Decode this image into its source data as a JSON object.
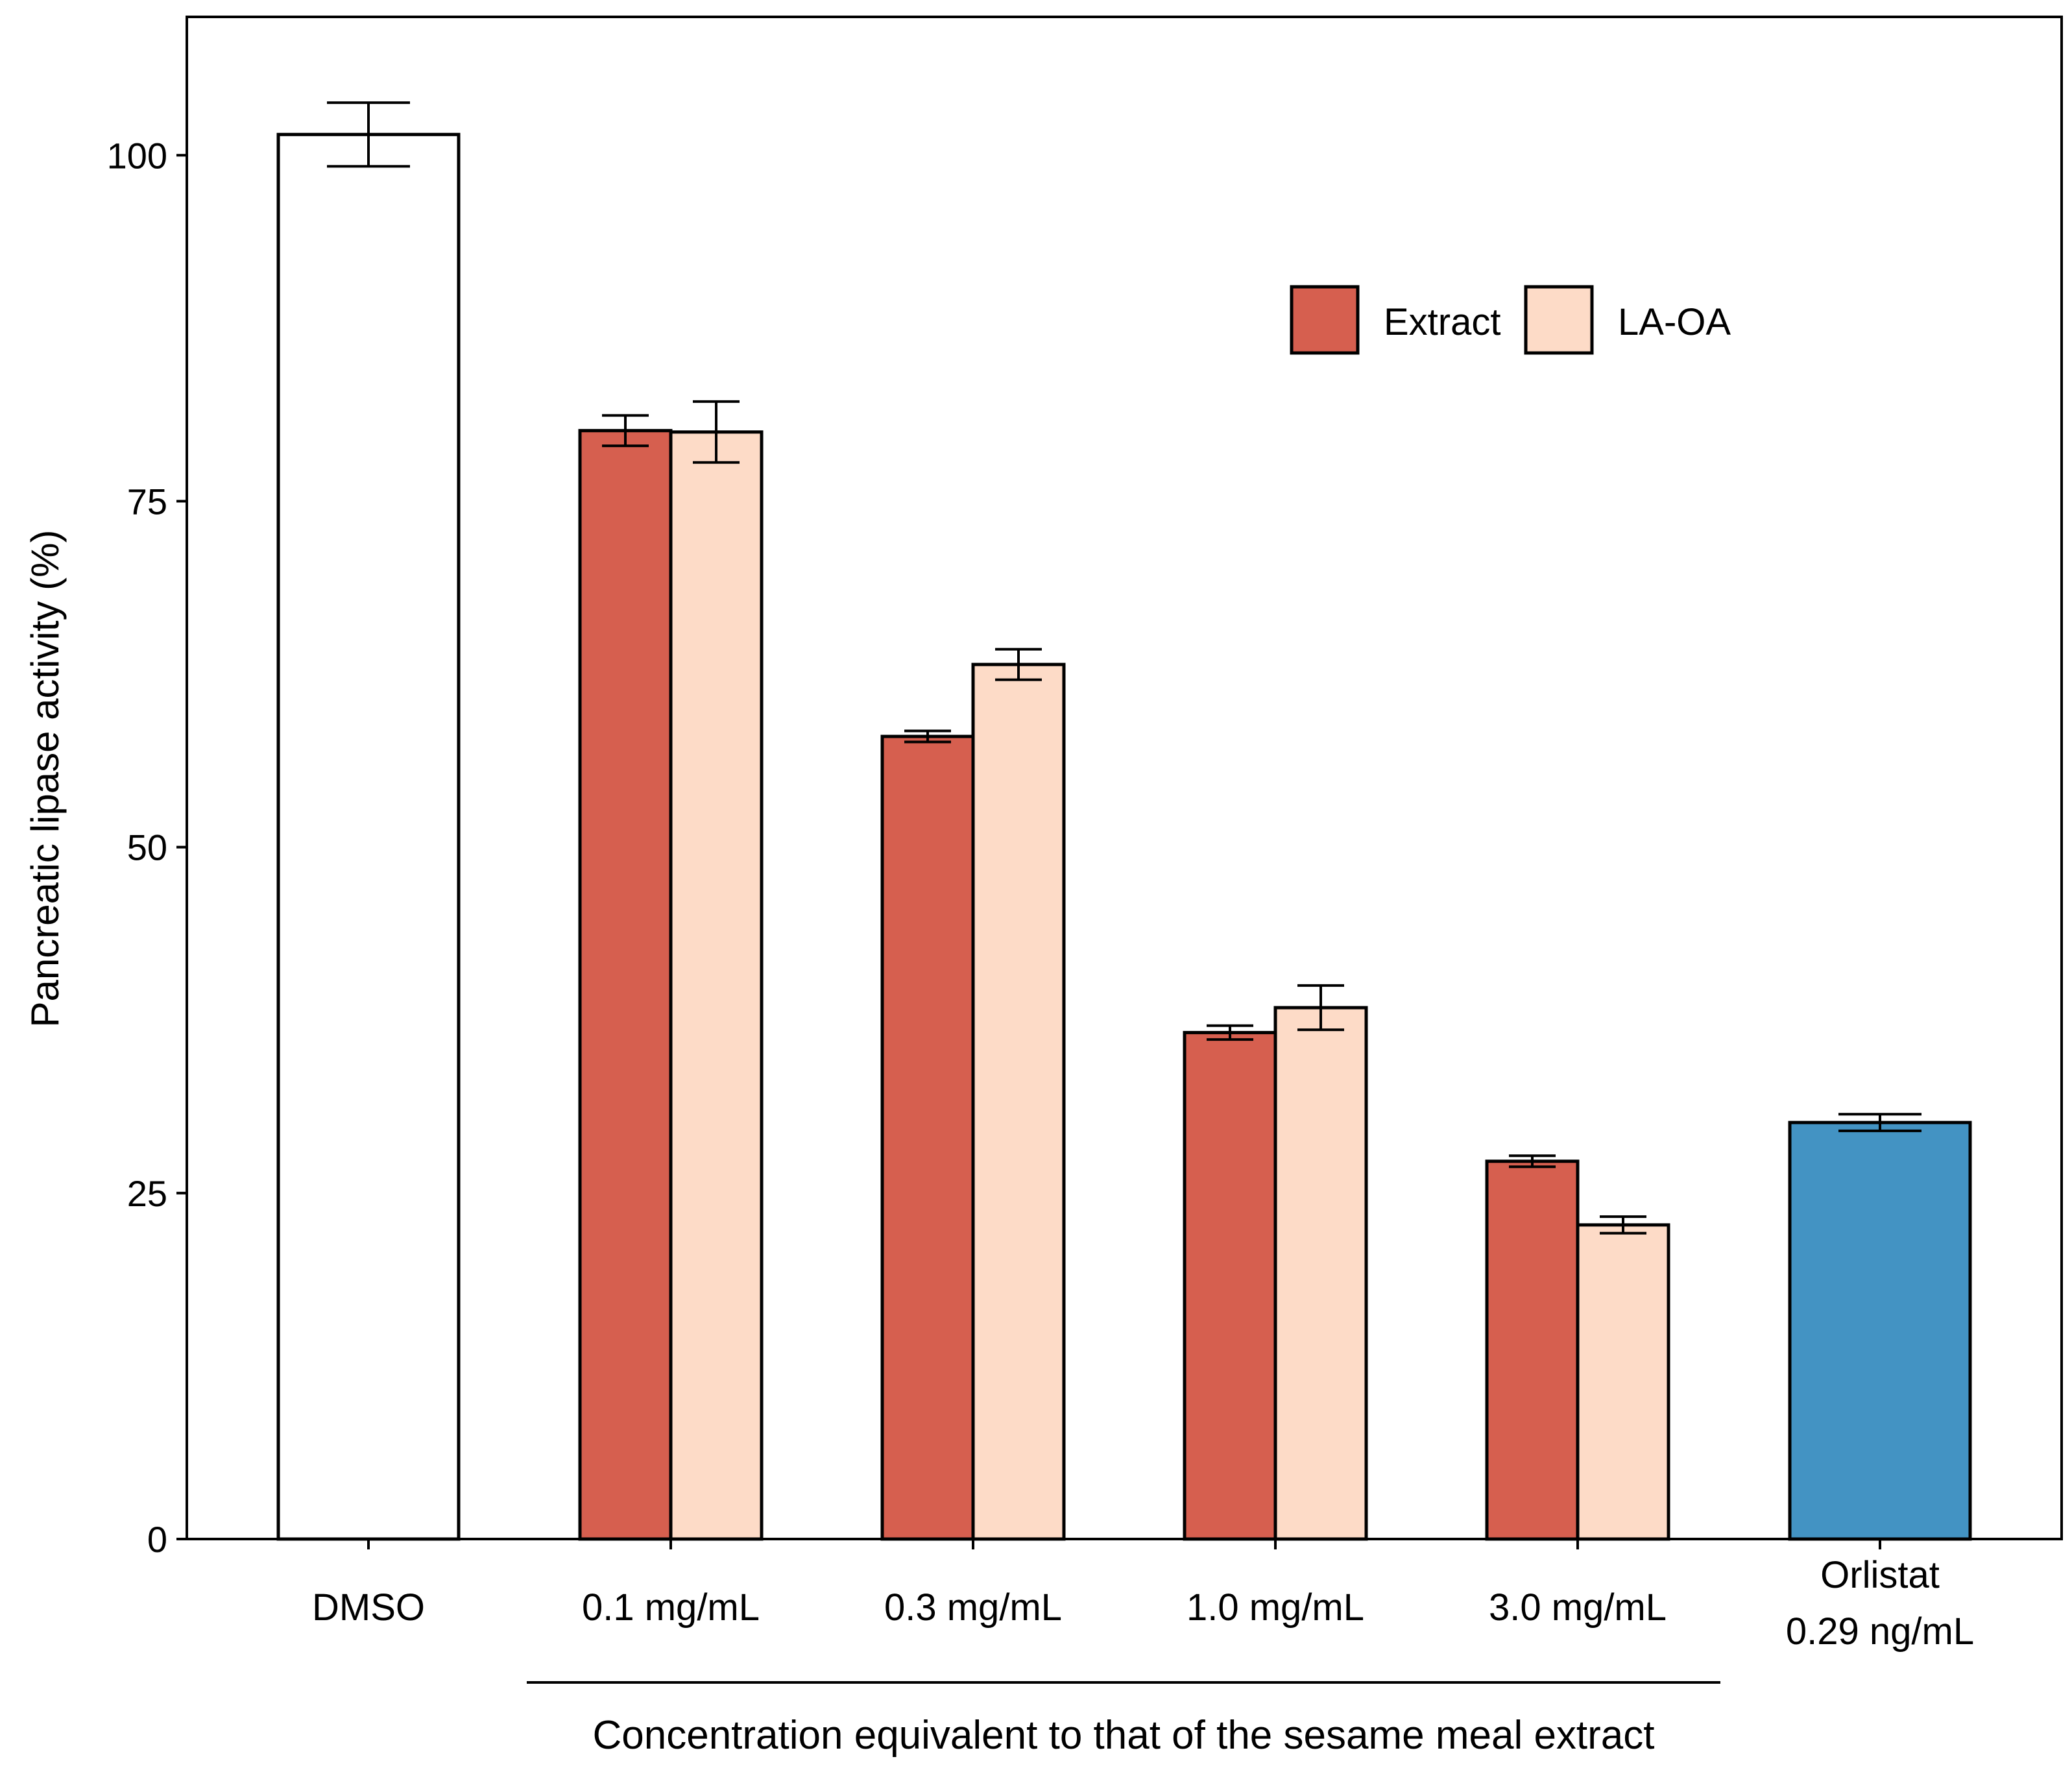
{
  "chart_data": {
    "type": "bar",
    "ylabel": "Pancreatic lipase activity (%)",
    "xlabel": "Concentration equivalent to that of the sesame meal extract",
    "ylim": [
      0,
      110
    ],
    "yticks": [
      0,
      25,
      50,
      75,
      100
    ],
    "grid": false,
    "legend_position": "top-right",
    "colors": {
      "DMSO": "#ffffff",
      "Extract": "#d65f4f",
      "LA-OA": "#fddbc7",
      "Orlistat": "#4393c3",
      "outline": "#000000"
    },
    "legend": [
      "Extract",
      "LA-OA"
    ],
    "categories": [
      {
        "label": "DMSO",
        "label2": ""
      },
      {
        "label": "0.1 mg/mL",
        "label2": ""
      },
      {
        "label": "0.3 mg/mL",
        "label2": ""
      },
      {
        "label": "1.0 mg/mL",
        "label2": ""
      },
      {
        "label": "3.0 mg/mL",
        "label2": ""
      },
      {
        "label": "Orlistat",
        "label2": "0.29 ng/mL"
      }
    ],
    "bars": [
      {
        "category": 0,
        "series": "DMSO",
        "value": 101.5,
        "err": 2.3
      },
      {
        "category": 1,
        "series": "Extract",
        "value": 80.1,
        "err": 1.1
      },
      {
        "category": 1,
        "series": "LA-OA",
        "value": 80.0,
        "err": 2.2
      },
      {
        "category": 2,
        "series": "Extract",
        "value": 58.0,
        "err": 0.4
      },
      {
        "category": 2,
        "series": "LA-OA",
        "value": 63.2,
        "err": 1.1
      },
      {
        "category": 3,
        "series": "Extract",
        "value": 36.6,
        "err": 0.5
      },
      {
        "category": 3,
        "series": "LA-OA",
        "value": 38.4,
        "err": 1.6
      },
      {
        "category": 4,
        "series": "Extract",
        "value": 27.3,
        "err": 0.4
      },
      {
        "category": 4,
        "series": "LA-OA",
        "value": 22.7,
        "err": 0.6
      },
      {
        "category": 5,
        "series": "Orlistat",
        "value": 30.1,
        "err": 0.6
      }
    ]
  }
}
